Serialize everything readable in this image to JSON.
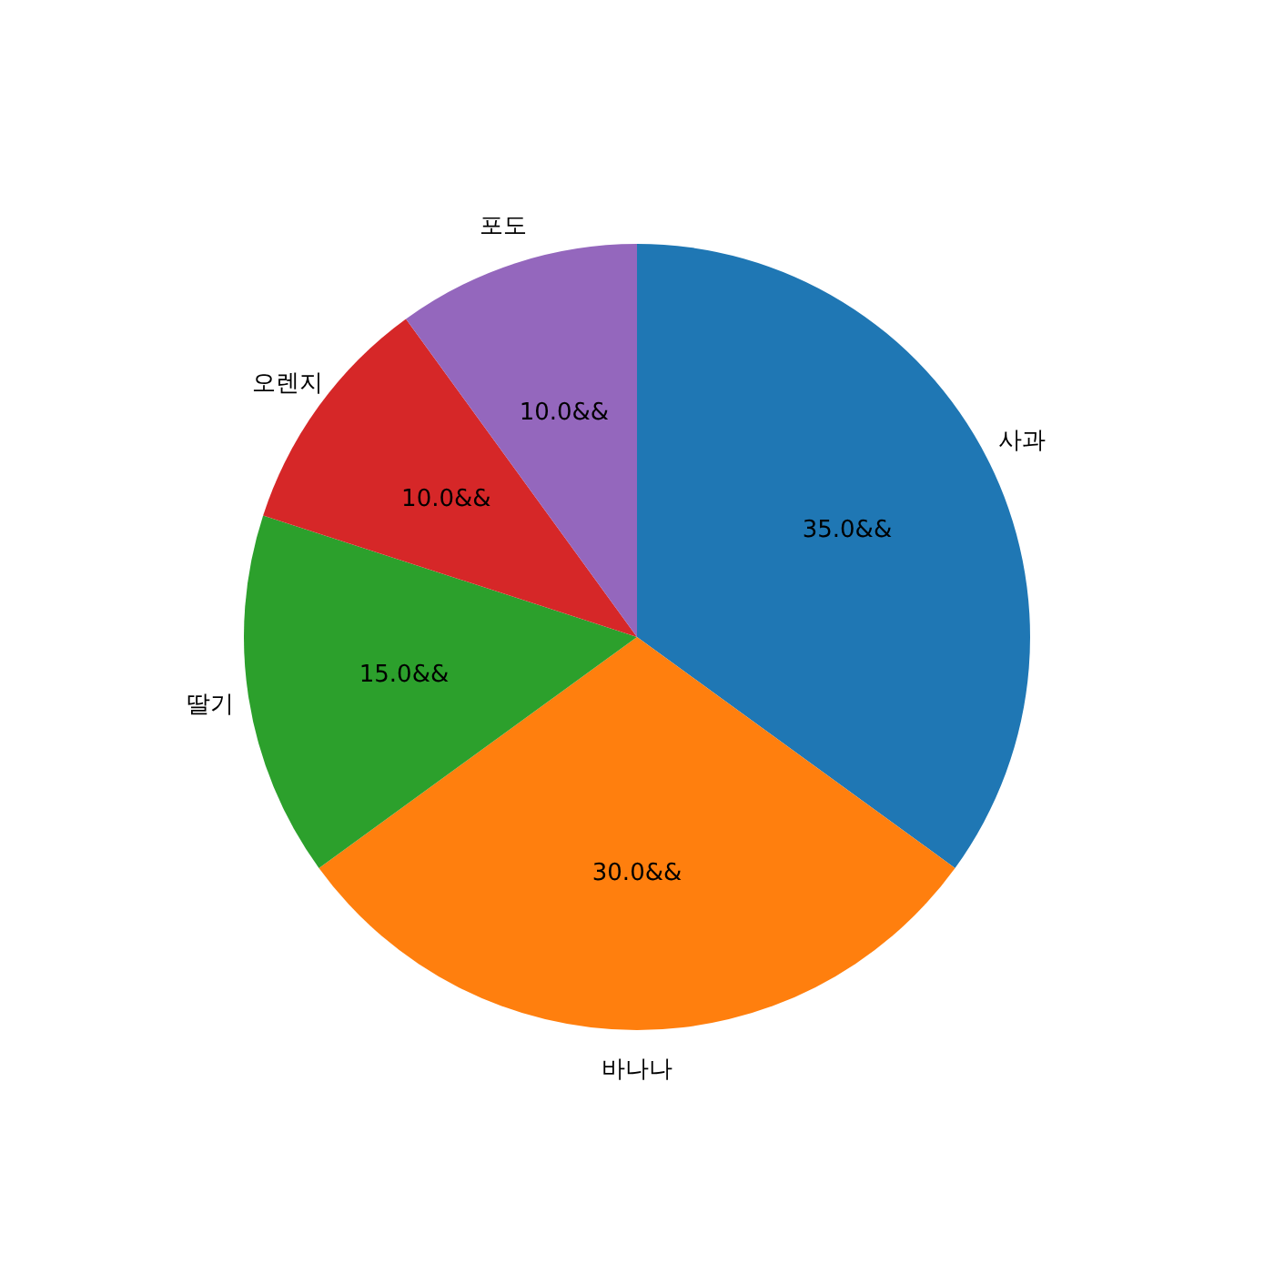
{
  "chart_data": {
    "type": "pie",
    "categories": [
      "사과",
      "바나나",
      "딸기",
      "오렌지",
      "포도"
    ],
    "values": [
      35,
      30,
      15,
      10,
      10
    ],
    "colors": [
      "#1f77b4",
      "#ff7f0e",
      "#2ca02c",
      "#d62728",
      "#9467bd"
    ],
    "value_labels": [
      "35.0&&",
      "30.0&&",
      "15.0&&",
      "10.0&&",
      "10.0&&"
    ],
    "legend": false
  }
}
